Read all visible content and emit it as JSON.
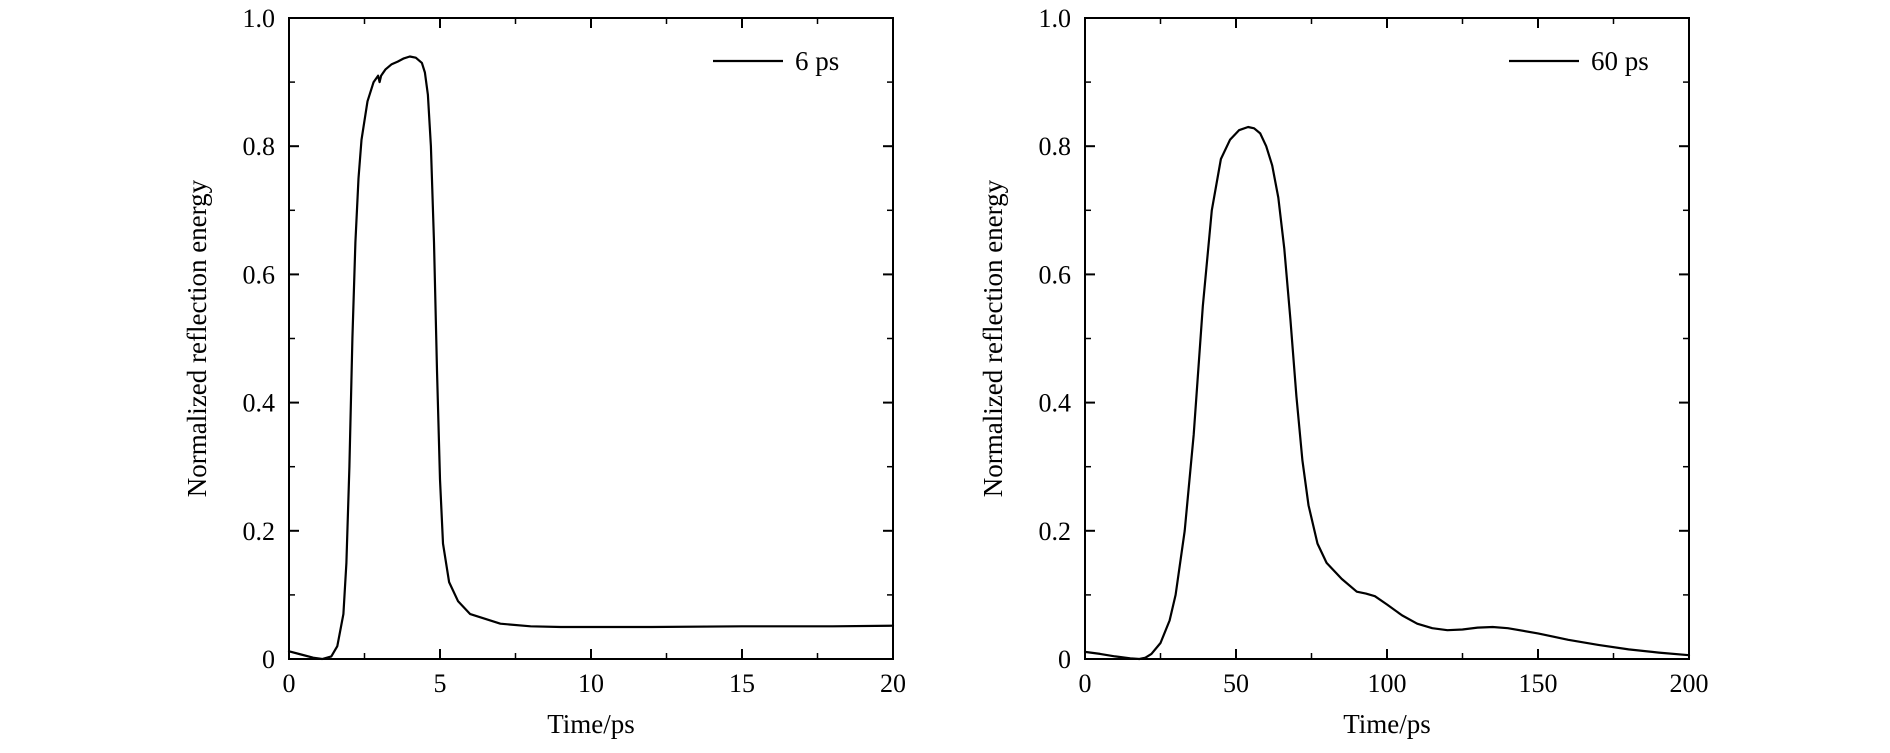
{
  "colors": {
    "line": "#000000",
    "axis": "#000000",
    "background": "#ffffff"
  },
  "chart_data": [
    {
      "type": "line",
      "title": "",
      "xlabel": "Time/ps",
      "ylabel": "Normalized reflection energy",
      "xlim": [
        0,
        20
      ],
      "ylim": [
        0,
        1.0
      ],
      "xticks": [
        0,
        5,
        10,
        15,
        20
      ],
      "xtick_labels": [
        "0",
        "5",
        "10",
        "15",
        "20"
      ],
      "yticks": [
        0,
        0.2,
        0.4,
        0.6,
        0.8,
        1.0
      ],
      "ytick_labels": [
        "0",
        "0.2",
        "0.4",
        "0.6",
        "0.8",
        "1.0"
      ],
      "grid": false,
      "legend_position": "top-right",
      "series": [
        {
          "name": "6 ps",
          "x": [
            0,
            0.4,
            0.8,
            1.1,
            1.4,
            1.6,
            1.8,
            1.9,
            2.0,
            2.1,
            2.2,
            2.3,
            2.4,
            2.6,
            2.8,
            2.95,
            3.0,
            3.05,
            3.2,
            3.4,
            3.6,
            3.8,
            4.0,
            4.2,
            4.4,
            4.5,
            4.6,
            4.7,
            4.8,
            4.9,
            5.0,
            5.1,
            5.3,
            5.6,
            6.0,
            7.0,
            8.0,
            9.0,
            10,
            12,
            15,
            18,
            20
          ],
          "y": [
            0.012,
            0.007,
            0.002,
            0.0,
            0.004,
            0.02,
            0.07,
            0.15,
            0.3,
            0.5,
            0.65,
            0.75,
            0.81,
            0.87,
            0.9,
            0.91,
            0.9,
            0.91,
            0.92,
            0.928,
            0.932,
            0.937,
            0.94,
            0.938,
            0.93,
            0.915,
            0.88,
            0.8,
            0.65,
            0.45,
            0.28,
            0.18,
            0.12,
            0.09,
            0.07,
            0.055,
            0.051,
            0.05,
            0.05,
            0.05,
            0.051,
            0.051,
            0.052
          ]
        }
      ]
    },
    {
      "type": "line",
      "title": "",
      "xlabel": "Time/ps",
      "ylabel": "Normalized reflection energy",
      "xlim": [
        0,
        200
      ],
      "ylim": [
        0,
        1.0
      ],
      "xticks": [
        0,
        50,
        100,
        150,
        200
      ],
      "xtick_labels": [
        "0",
        "50",
        "100",
        "150",
        "200"
      ],
      "yticks": [
        0,
        0.2,
        0.4,
        0.6,
        0.8,
        1.0
      ],
      "ytick_labels": [
        "0",
        "0.2",
        "0.4",
        "0.6",
        "0.8",
        "1.0"
      ],
      "grid": false,
      "legend_position": "top-right",
      "series": [
        {
          "name": "60 ps",
          "x": [
            0,
            5,
            10,
            15,
            18,
            20,
            22,
            25,
            28,
            30,
            33,
            36,
            39,
            42,
            45,
            48,
            51,
            54,
            56,
            58,
            60,
            62,
            64,
            66,
            68,
            70,
            72,
            74,
            77,
            80,
            85,
            90,
            93,
            96,
            100,
            105,
            110,
            115,
            120,
            125,
            130,
            135,
            140,
            150,
            160,
            170,
            180,
            190,
            200
          ],
          "y": [
            0.011,
            0.008,
            0.004,
            0.001,
            0.0,
            0.002,
            0.008,
            0.025,
            0.06,
            0.1,
            0.2,
            0.35,
            0.55,
            0.7,
            0.78,
            0.81,
            0.825,
            0.83,
            0.828,
            0.82,
            0.8,
            0.77,
            0.72,
            0.64,
            0.53,
            0.41,
            0.31,
            0.24,
            0.18,
            0.15,
            0.125,
            0.105,
            0.102,
            0.098,
            0.085,
            0.068,
            0.055,
            0.048,
            0.045,
            0.046,
            0.049,
            0.05,
            0.048,
            0.04,
            0.03,
            0.022,
            0.015,
            0.01,
            0.006
          ]
        }
      ]
    }
  ]
}
